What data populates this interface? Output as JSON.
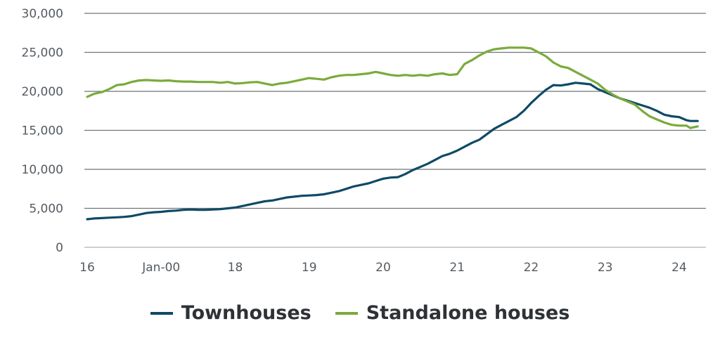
{
  "chart_data": {
    "type": "line",
    "title": "",
    "xlabel": "",
    "ylabel": "",
    "ylim": [
      0,
      30000
    ],
    "yticks": [
      0,
      5000,
      10000,
      15000,
      20000,
      25000,
      30000
    ],
    "ytick_labels": [
      "0",
      "5,000",
      "10,000",
      "15,000",
      "20,000",
      "25,000",
      "30,000"
    ],
    "xlim": [
      2016,
      2024.4
    ],
    "xticks": [
      2016,
      2017,
      2018,
      2019,
      2020,
      2021,
      2022,
      2023,
      2024
    ],
    "xtick_labels": [
      "16",
      "Jan-00",
      "18",
      "19",
      "20",
      "21",
      "22",
      "23",
      "24"
    ],
    "grid": "horizontal",
    "legend_position": "bottom-center",
    "series": [
      {
        "name": "Townhouses",
        "color": "#0e4a66",
        "x": [
          2016.0,
          2016.1,
          2016.2,
          2016.3,
          2016.4,
          2016.5,
          2016.6,
          2016.7,
          2016.8,
          2016.9,
          2017.0,
          2017.1,
          2017.2,
          2017.3,
          2017.4,
          2017.5,
          2017.6,
          2017.7,
          2017.8,
          2017.9,
          2018.0,
          2018.1,
          2018.2,
          2018.3,
          2018.4,
          2018.5,
          2018.6,
          2018.7,
          2018.8,
          2018.9,
          2019.0,
          2019.1,
          2019.2,
          2019.3,
          2019.4,
          2019.5,
          2019.6,
          2019.7,
          2019.8,
          2019.9,
          2020.0,
          2020.1,
          2020.2,
          2020.3,
          2020.4,
          2020.5,
          2020.6,
          2020.7,
          2020.8,
          2020.9,
          2021.0,
          2021.1,
          2021.2,
          2021.3,
          2021.4,
          2021.5,
          2021.6,
          2021.7,
          2021.8,
          2021.9,
          2022.0,
          2022.1,
          2022.2,
          2022.3,
          2022.4,
          2022.5,
          2022.6,
          2022.7,
          2022.8,
          2022.9,
          2023.0,
          2023.1,
          2023.2,
          2023.3,
          2023.4,
          2023.5,
          2023.6,
          2023.7,
          2023.8,
          2023.9,
          2024.0,
          2024.1,
          2024.15,
          2024.25
        ],
        "y": [
          3600,
          3700,
          3750,
          3800,
          3850,
          3900,
          4000,
          4200,
          4400,
          4500,
          4550,
          4650,
          4700,
          4800,
          4850,
          4800,
          4800,
          4850,
          4900,
          5000,
          5100,
          5300,
          5500,
          5700,
          5900,
          6000,
          6200,
          6400,
          6500,
          6600,
          6650,
          6700,
          6800,
          7000,
          7200,
          7500,
          7800,
          8000,
          8200,
          8500,
          8800,
          8950,
          9000,
          9400,
          9900,
          10300,
          10700,
          11200,
          11700,
          12000,
          12400,
          12900,
          13400,
          13800,
          14500,
          15200,
          15700,
          16200,
          16700,
          17500,
          18500,
          19400,
          20200,
          20800,
          20750,
          20900,
          21100,
          21000,
          20900,
          20300,
          19900,
          19500,
          19100,
          18800,
          18500,
          18200,
          17900,
          17500,
          17000,
          16800,
          16700,
          16300,
          16200,
          16200
        ]
      },
      {
        "name": "Standalone houses",
        "color": "#7aab3b",
        "x": [
          2016.0,
          2016.1,
          2016.2,
          2016.3,
          2016.4,
          2016.5,
          2016.6,
          2016.7,
          2016.8,
          2016.9,
          2017.0,
          2017.1,
          2017.2,
          2017.3,
          2017.4,
          2017.5,
          2017.6,
          2017.7,
          2017.8,
          2017.9,
          2018.0,
          2018.1,
          2018.2,
          2018.3,
          2018.4,
          2018.5,
          2018.6,
          2018.7,
          2018.8,
          2018.9,
          2019.0,
          2019.1,
          2019.2,
          2019.3,
          2019.4,
          2019.5,
          2019.6,
          2019.7,
          2019.8,
          2019.9,
          2020.0,
          2020.1,
          2020.2,
          2020.3,
          2020.4,
          2020.5,
          2020.6,
          2020.7,
          2020.8,
          2020.9,
          2021.0,
          2021.1,
          2021.2,
          2021.3,
          2021.4,
          2021.5,
          2021.6,
          2021.7,
          2021.8,
          2021.9,
          2022.0,
          2022.1,
          2022.2,
          2022.3,
          2022.4,
          2022.5,
          2022.6,
          2022.7,
          2022.8,
          2022.9,
          2023.0,
          2023.1,
          2023.2,
          2023.3,
          2023.4,
          2023.5,
          2023.6,
          2023.7,
          2023.8,
          2023.9,
          2024.0,
          2024.1,
          2024.15,
          2024.25
        ],
        "y": [
          19300,
          19700,
          19900,
          20300,
          20800,
          20900,
          21200,
          21400,
          21450,
          21400,
          21350,
          21400,
          21300,
          21250,
          21250,
          21200,
          21200,
          21200,
          21100,
          21200,
          21000,
          21050,
          21150,
          21200,
          21000,
          20800,
          21000,
          21100,
          21300,
          21500,
          21700,
          21600,
          21500,
          21800,
          22000,
          22100,
          22100,
          22200,
          22300,
          22500,
          22300,
          22100,
          22000,
          22100,
          22000,
          22100,
          22000,
          22200,
          22300,
          22100,
          22200,
          23500,
          24000,
          24600,
          25100,
          25400,
          25500,
          25600,
          25600,
          25600,
          25500,
          25000,
          24500,
          23700,
          23200,
          23000,
          22500,
          22000,
          21500,
          21000,
          20200,
          19600,
          19100,
          18700,
          18300,
          17500,
          16800,
          16400,
          16000,
          15700,
          15600,
          15600,
          15300,
          15500
        ]
      }
    ]
  }
}
